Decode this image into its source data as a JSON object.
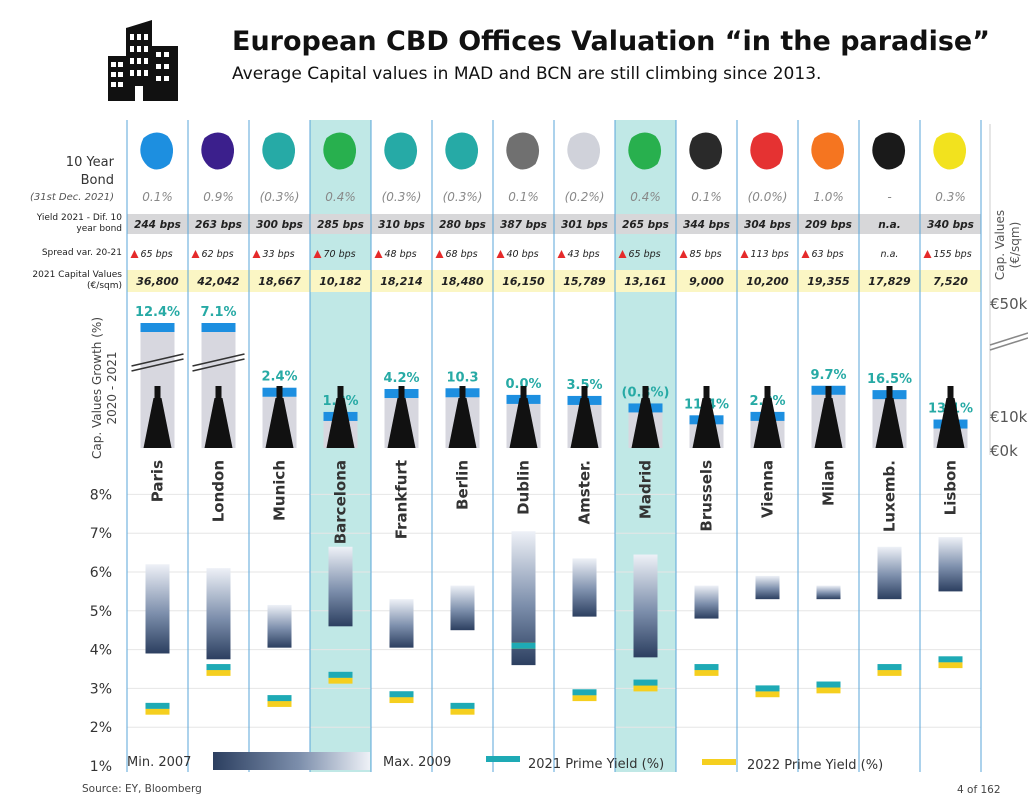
{
  "header": {
    "title": "European CBD Offices Valuation “in the paradise”",
    "subtitle": "Average Capital values in MAD and BCN are still climbing since 2013."
  },
  "row_labels": {
    "bond_line1": "10 Year",
    "bond_line2": "Bond",
    "bond_date": "(31st Dec. 2021)",
    "yield_dif_line1": "Yield 2021 - Dif. 10",
    "yield_dif_line2": "year bond",
    "spread": "Spread var. 20-21",
    "cap_values_line1": "2021 Capital Values",
    "cap_values_line2": "(€/sqm)",
    "growth_axis_line1": "Cap. Values Growth (%)",
    "growth_axis_line2": "2020 - 2021"
  },
  "right_axis": {
    "title_line1": "Cap. Values",
    "title_line2": "(€/sqm)",
    "tick_top": "€50k",
    "tick_mid": "€10k",
    "tick_bottom": "€0k"
  },
  "legend": {
    "min": "Min. 2007",
    "max": "Max. 2009",
    "prime_2021": "2021 Prime Yield (%)",
    "prime_2022": "2022 Prime Yield (%)"
  },
  "footer": {
    "source": "Source: EY, Bloomberg",
    "page": "4 of 162"
  },
  "colors": {
    "highlight": "#b9e5e3",
    "column_line": "#5aa6d8",
    "growth_text": "#27aaa5",
    "prime_2021": "#1eaab5",
    "prime_2022": "#f5cf1f",
    "bar_dark": "#2c3f60",
    "bar_light": "#eaeef5",
    "cap_bar": "#d7d7df",
    "cap_bar_top": "#1d8fe0",
    "spread_arrow": "#e52a2a"
  },
  "cities": [
    {
      "name": "Paris",
      "map_color": "#1d8fe0",
      "bond": "0.1%",
      "yield_dif": "244 bps",
      "spread": "65 bps",
      "cap_value": "36,800",
      "growth": "12.4%",
      "highlight": false,
      "icon": "eiffel-tower-icon"
    },
    {
      "name": "London",
      "map_color": "#3b1f8c",
      "bond": "0.9%",
      "yield_dif": "263 bps",
      "spread": "62 bps",
      "cap_value": "42,042",
      "growth": "7.1%",
      "highlight": false,
      "icon": "big-ben-icon"
    },
    {
      "name": "Munich",
      "map_color": "#26aaa6",
      "bond": "(0.3%)",
      "yield_dif": "300 bps",
      "spread": "33 bps",
      "cap_value": "18,667",
      "growth": "2.4%",
      "highlight": false,
      "icon": "munich-skyline-icon"
    },
    {
      "name": "Barcelona",
      "map_color": "#28b04e",
      "bond": "0.4%",
      "yield_dif": "285 bps",
      "spread": "70 bps",
      "cap_value": "10,182",
      "growth": "1.8%",
      "highlight": true,
      "icon": "sagrada-familia-icon"
    },
    {
      "name": "Frankfurt",
      "map_color": "#26aaa6",
      "bond": "(0.3%)",
      "yield_dif": "310 bps",
      "spread": "48 bps",
      "cap_value": "18,214",
      "growth": "4.2%",
      "highlight": false,
      "icon": "frankfurt-tower-icon"
    },
    {
      "name": "Berlin",
      "map_color": "#26aaa6",
      "bond": "(0.3%)",
      "yield_dif": "280 bps",
      "spread": "68 bps",
      "cap_value": "18,480",
      "growth": "10.3",
      "highlight": false,
      "icon": "tv-tower-icon"
    },
    {
      "name": "Dublin",
      "map_color": "#707070",
      "bond": "0.1%",
      "yield_dif": "387 bps",
      "spread": "40 bps",
      "cap_value": "16,150",
      "growth": "0.0%",
      "highlight": false,
      "icon": "dublin-castle-icon"
    },
    {
      "name": "Amster.",
      "map_color": "#d0d2da",
      "bond": "(0.2%)",
      "yield_dif": "301 bps",
      "spread": "43 bps",
      "cap_value": "15,789",
      "growth": "3.5%",
      "highlight": false,
      "icon": "windmill-icon"
    },
    {
      "name": "Madrid",
      "map_color": "#28b04e",
      "bond": "0.4%",
      "yield_dif": "265 bps",
      "spread": "65 bps",
      "cap_value": "13,161",
      "growth": "(0.3%)",
      "highlight": true,
      "icon": "kio-towers-icon"
    },
    {
      "name": "Brussels",
      "map_color": "#2a2a2a",
      "bond": "0.1%",
      "yield_dif": "344 bps",
      "spread": "85 bps",
      "cap_value": "9,000",
      "growth": "11.4%",
      "highlight": false,
      "icon": "atomium-icon"
    },
    {
      "name": "Vienna",
      "map_color": "#e53232",
      "bond": "(0.0%)",
      "yield_dif": "304 bps",
      "spread": "113 bps",
      "cap_value": "10,200",
      "growth": "2.0%",
      "highlight": false,
      "icon": "vienna-cathedral-icon"
    },
    {
      "name": "Milan",
      "map_color": "#f57520",
      "bond": "1.0%",
      "yield_dif": "209 bps",
      "spread": "63 bps",
      "cap_value": "19,355",
      "growth": "9.7%",
      "highlight": false,
      "icon": "milan-duomo-icon"
    },
    {
      "name": "Luxemb.",
      "map_color": "#1a1a1a",
      "bond": "-",
      "yield_dif": "n.a.",
      "spread": "n.a.",
      "cap_value": "17,829",
      "growth": "16.5%",
      "highlight": false,
      "icon": "luxembourg-palace-icon"
    },
    {
      "name": "Lisbon",
      "map_color": "#f2e21e",
      "bond": "0.3%",
      "yield_dif": "340 bps",
      "spread": "155 bps",
      "cap_value": "7,520",
      "growth": "13.1%",
      "highlight": false,
      "icon": "lisbon-tower-icon"
    }
  ],
  "chart_data": {
    "type": "bar",
    "categories": [
      "Paris",
      "London",
      "Munich",
      "Barcelona",
      "Frankfurt",
      "Berlin",
      "Dublin",
      "Amster.",
      "Madrid",
      "Brussels",
      "Vienna",
      "Milan",
      "Luxemb.",
      "Lisbon"
    ],
    "ylim": [
      1,
      9
    ],
    "yticks": [
      "1%",
      "2%",
      "3%",
      "4%",
      "5%",
      "6%",
      "7%",
      "8%"
    ],
    "legend_placement": "bottom",
    "grid": true,
    "series": [
      {
        "name": "Min. 2007",
        "values": [
          3.9,
          3.75,
          4.05,
          4.6,
          4.05,
          4.5,
          3.6,
          4.85,
          3.8,
          4.8,
          5.3,
          5.3,
          5.3,
          5.5
        ]
      },
      {
        "name": "Max. 2009",
        "values": [
          6.2,
          6.1,
          5.15,
          6.65,
          5.3,
          5.65,
          7.05,
          6.35,
          6.45,
          5.65,
          5.9,
          5.65,
          6.65,
          6.9
        ]
      },
      {
        "name": "2021 Prime Yield (%)",
        "values": [
          2.55,
          3.55,
          2.75,
          3.35,
          2.85,
          2.55,
          4.1,
          2.9,
          3.15,
          3.55,
          3.0,
          3.1,
          3.55,
          3.75
        ]
      },
      {
        "name": "2022 Prime Yield (%)",
        "values": [
          2.4,
          3.4,
          2.6,
          3.2,
          2.7,
          2.4,
          4.1,
          2.75,
          3.0,
          3.4,
          2.85,
          2.95,
          3.4,
          3.6
        ]
      }
    ],
    "capital_values_eur_sqm": [
      36800,
      42042,
      18667,
      10182,
      18214,
      18480,
      16150,
      15789,
      13161,
      9000,
      10200,
      19355,
      17829,
      7520
    ],
    "capital_value_growth_pct": [
      12.4,
      7.1,
      2.4,
      1.8,
      4.2,
      10.3,
      0.0,
      3.5,
      -0.3,
      11.4,
      2.0,
      9.7,
      16.5,
      13.1
    ]
  }
}
